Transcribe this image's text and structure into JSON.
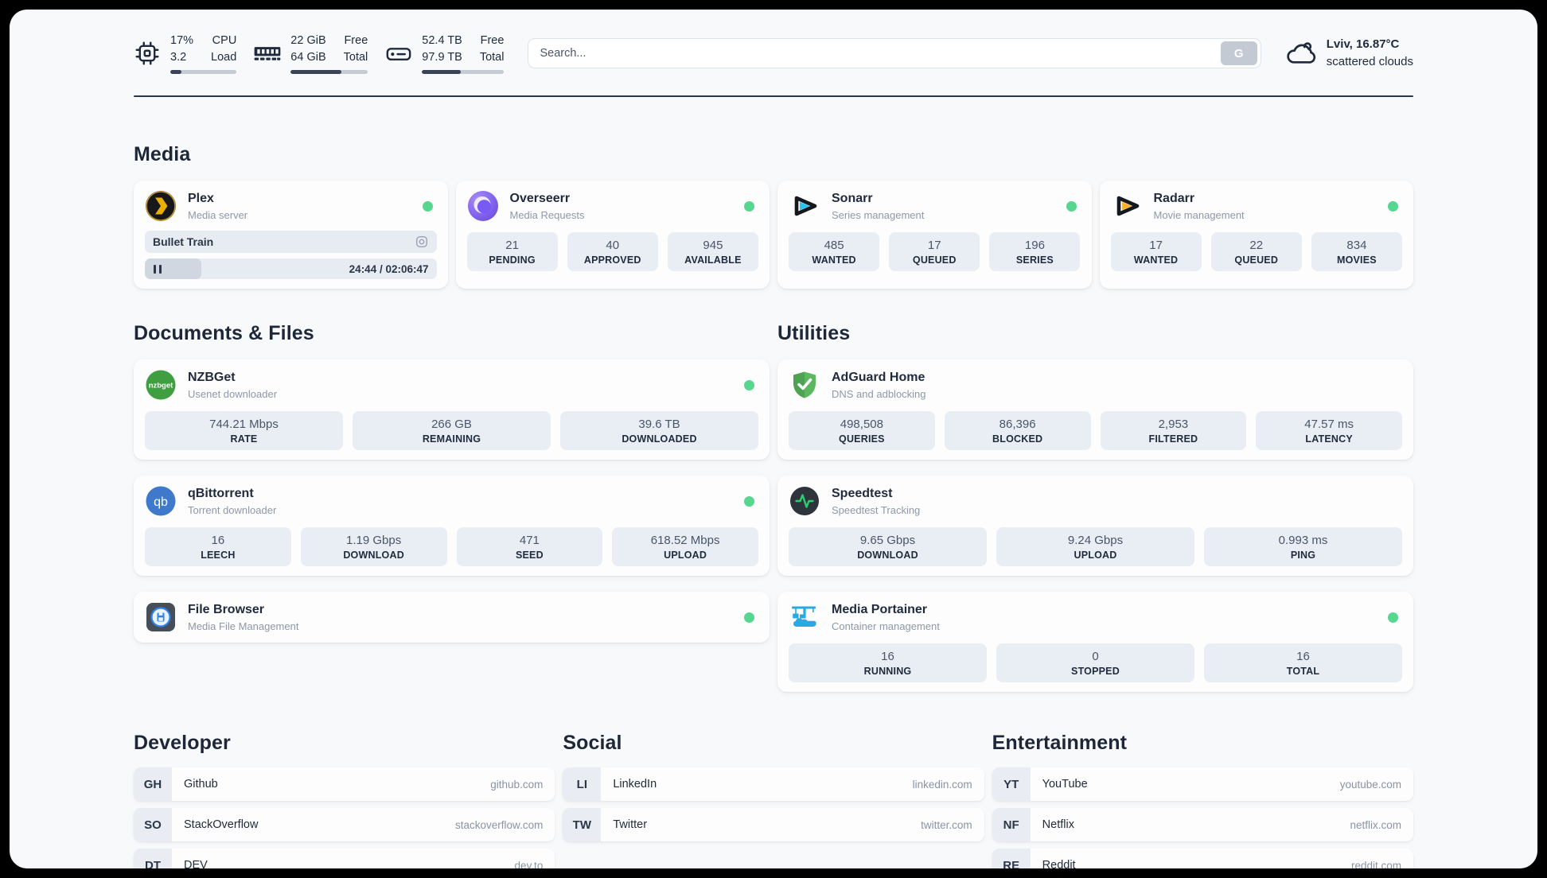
{
  "colors": {
    "status_online": "#57d68f",
    "progress_fill": "#3a4456",
    "stat_background": "#e9eef5",
    "page_background": "#f7f9fb",
    "text_primary": "#1f2a3c",
    "text_secondary": "#8e98a8"
  },
  "header": {
    "widgets": {
      "cpu": {
        "value1": "17%",
        "value2": "3.2",
        "label1": "CPU",
        "label2": "Load",
        "progress": 17
      },
      "memory": {
        "value1": "22 GiB",
        "value2": "64 GiB",
        "label1": "Free",
        "label2": "Total",
        "progress": 66
      },
      "disk": {
        "value1": "52.4 TB",
        "value2": "97.9 TB",
        "label1": "Free",
        "label2": "Total",
        "progress": 47
      }
    },
    "search": {
      "placeholder": "Search...",
      "engine_button": "G"
    },
    "weather": {
      "location_temperature": "Lviv, 16.87°C",
      "condition": "scattered clouds"
    }
  },
  "media": {
    "title": "Media",
    "plex": {
      "name": "Plex",
      "description": "Media server",
      "now_playing": "Bullet Train",
      "time_display": "24:44 / 02:06:47",
      "progress_pct": 19.5
    },
    "overseerr": {
      "name": "Overseerr",
      "description": "Media Requests",
      "stats": [
        {
          "value": "21",
          "label": "PENDING"
        },
        {
          "value": "40",
          "label": "APPROVED"
        },
        {
          "value": "945",
          "label": "AVAILABLE"
        }
      ]
    },
    "sonarr": {
      "name": "Sonarr",
      "description": "Series management",
      "stats": [
        {
          "value": "485",
          "label": "WANTED"
        },
        {
          "value": "17",
          "label": "QUEUED"
        },
        {
          "value": "196",
          "label": "SERIES"
        }
      ]
    },
    "radarr": {
      "name": "Radarr",
      "description": "Movie management",
      "stats": [
        {
          "value": "17",
          "label": "WANTED"
        },
        {
          "value": "22",
          "label": "QUEUED"
        },
        {
          "value": "834",
          "label": "MOVIES"
        }
      ]
    }
  },
  "documents": {
    "title": "Documents & Files",
    "nzbget": {
      "name": "NZBGet",
      "description": "Usenet downloader",
      "stats": [
        {
          "value": "744.21 Mbps",
          "label": "RATE"
        },
        {
          "value": "266 GB",
          "label": "REMAINING"
        },
        {
          "value": "39.6 TB",
          "label": "DOWNLOADED"
        }
      ]
    },
    "qbittorrent": {
      "name": "qBittorrent",
      "description": "Torrent downloader",
      "stats": [
        {
          "value": "16",
          "label": "LEECH"
        },
        {
          "value": "1.19 Gbps",
          "label": "DOWNLOAD"
        },
        {
          "value": "471",
          "label": "SEED"
        },
        {
          "value": "618.52 Mbps",
          "label": "UPLOAD"
        }
      ]
    },
    "filebrowser": {
      "name": "File Browser",
      "description": "Media File Management"
    }
  },
  "utilities": {
    "title": "Utilities",
    "adguard": {
      "name": "AdGuard Home",
      "description": "DNS and adblocking",
      "stats": [
        {
          "value": "498,508",
          "label": "QUERIES"
        },
        {
          "value": "86,396",
          "label": "BLOCKED"
        },
        {
          "value": "2,953",
          "label": "FILTERED"
        },
        {
          "value": "47.57 ms",
          "label": "LATENCY"
        }
      ]
    },
    "speedtest": {
      "name": "Speedtest",
      "description": "Speedtest Tracking",
      "stats": [
        {
          "value": "9.65 Gbps",
          "label": "DOWNLOAD"
        },
        {
          "value": "9.24 Gbps",
          "label": "UPLOAD"
        },
        {
          "value": "0.993 ms",
          "label": "PING"
        }
      ]
    },
    "portainer": {
      "name": "Media Portainer",
      "description": "Container management",
      "stats": [
        {
          "value": "16",
          "label": "RUNNING"
        },
        {
          "value": "0",
          "label": "STOPPED"
        },
        {
          "value": "16",
          "label": "TOTAL"
        }
      ]
    }
  },
  "bookmarks": {
    "developer": {
      "title": "Developer",
      "items": [
        {
          "abbr": "GH",
          "name": "Github",
          "url": "github.com"
        },
        {
          "abbr": "SO",
          "name": "StackOverflow",
          "url": "stackoverflow.com"
        },
        {
          "abbr": "DT",
          "name": "DEV",
          "url": "dev.to"
        }
      ]
    },
    "social": {
      "title": "Social",
      "items": [
        {
          "abbr": "LI",
          "name": "LinkedIn",
          "url": "linkedin.com"
        },
        {
          "abbr": "TW",
          "name": "Twitter",
          "url": "twitter.com"
        }
      ]
    },
    "entertainment": {
      "title": "Entertainment",
      "items": [
        {
          "abbr": "YT",
          "name": "YouTube",
          "url": "youtube.com"
        },
        {
          "abbr": "NF",
          "name": "Netflix",
          "url": "netflix.com"
        },
        {
          "abbr": "RE",
          "name": "Reddit",
          "url": "reddit.com"
        }
      ]
    }
  }
}
